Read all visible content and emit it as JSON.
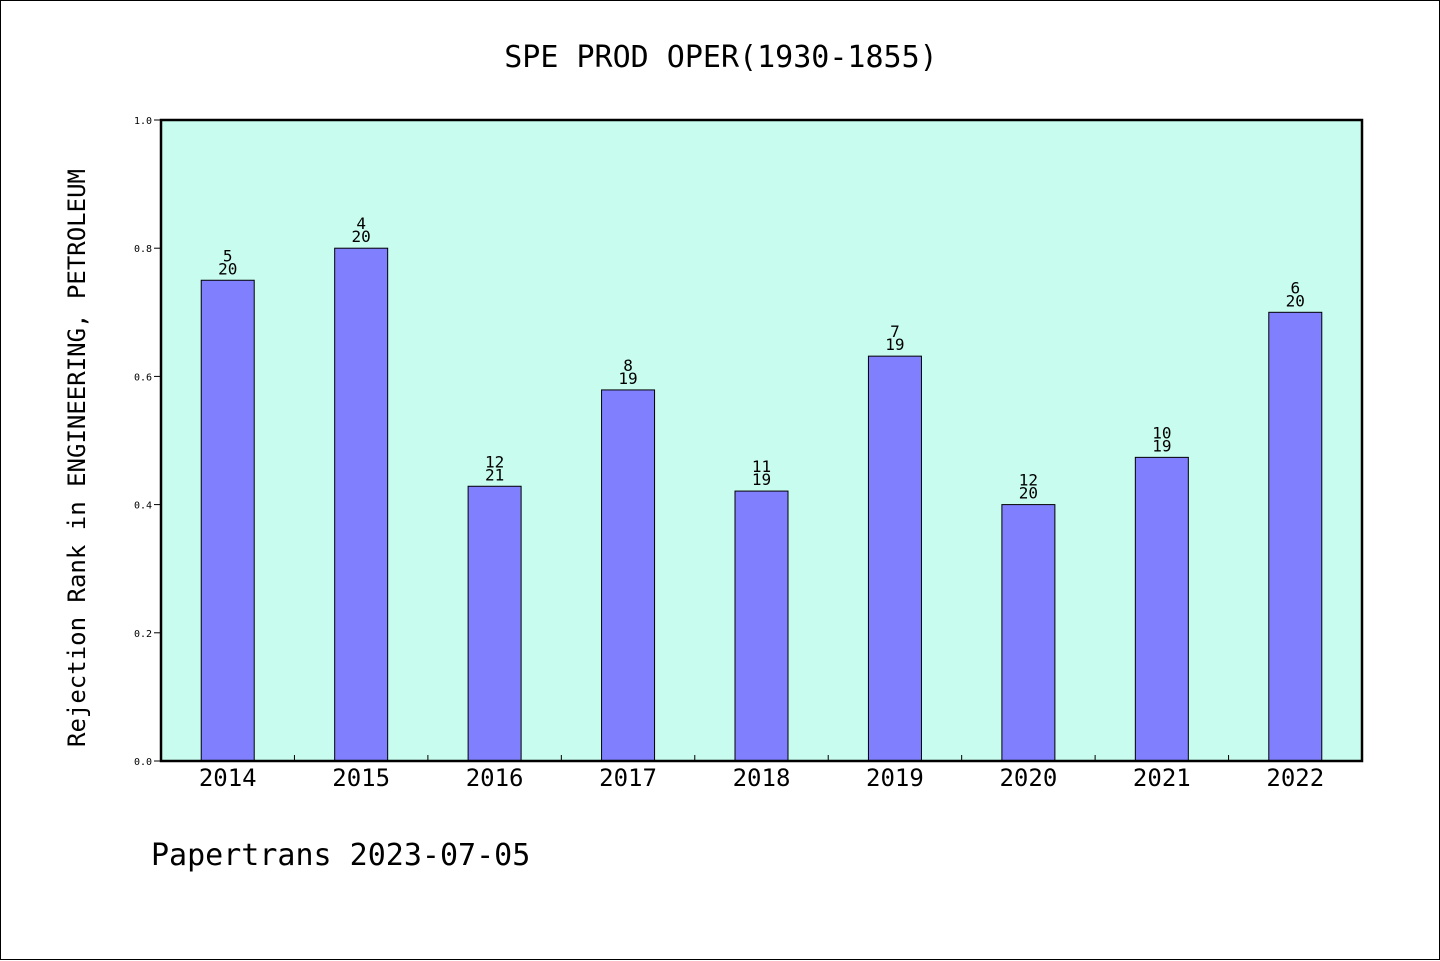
{
  "chart_data": {
    "type": "bar",
    "title": "SPE PROD OPER(1930-1855)",
    "xlabel": "",
    "ylabel": "Rejection Rank in ENGINEERING, PETROLEUM",
    "categories": [
      "2014",
      "2015",
      "2016",
      "2017",
      "2018",
      "2019",
      "2020",
      "2021",
      "2022"
    ],
    "values": [
      0.75,
      0.8,
      0.4286,
      0.5789,
      0.4211,
      0.6316,
      0.4,
      0.4737,
      0.7
    ],
    "ranks": [
      "5",
      "4",
      "12",
      "8",
      "11",
      "7",
      "12",
      "10",
      "6"
    ],
    "totals": [
      "20",
      "20",
      "21",
      "19",
      "19",
      "19",
      "20",
      "19",
      "20"
    ],
    "ylim": [
      0,
      1.0
    ],
    "yticks": [
      "0.0",
      "0.2",
      "0.4",
      "0.6",
      "0.8",
      "1.0"
    ],
    "grid": false,
    "colors": {
      "plot_background": "#c8fcee",
      "bar_fill": "#8080ff",
      "bar_edge": "#000000"
    }
  },
  "footer": {
    "text": "Papertrans 2023-07-05"
  }
}
